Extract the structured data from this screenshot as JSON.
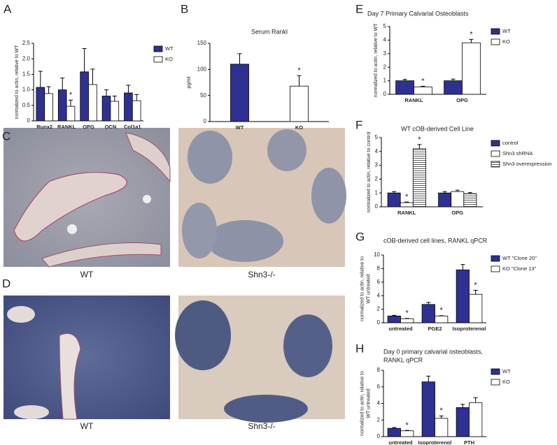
{
  "panels": {
    "letters": [
      "A",
      "B",
      "C",
      "D",
      "E",
      "F",
      "G",
      "H"
    ],
    "captions": [
      "WT",
      "Shn3-/-",
      "WT",
      "Shn3-/-"
    ]
  },
  "chart_data": [
    {
      "type": "bar",
      "ylabel": "normalized to actin, relative to WT",
      "categories": [
        "Runx2",
        "RANKL",
        "OPG",
        "OCN",
        "Col1a1"
      ],
      "series": [
        {
          "name": "WT",
          "color": "#2e3192",
          "values": [
            1.08,
            1.0,
            1.58,
            0.8,
            0.9
          ],
          "errors": [
            0.52,
            0.38,
            0.75,
            0.2,
            0.25
          ],
          "annotations": [
            null,
            null,
            null,
            null,
            null
          ]
        },
        {
          "name": "KO",
          "color": "#ffffff",
          "values": [
            0.88,
            0.47,
            1.17,
            0.63,
            0.65
          ],
          "errors": [
            0.22,
            0.2,
            0.5,
            0.17,
            0.2
          ],
          "annotations": [
            null,
            "*",
            null,
            null,
            null
          ]
        }
      ],
      "ylim": [
        0,
        2.5
      ],
      "yticks": [
        0,
        0.5,
        {
          "value": 1,
          "label": "1.0"
        },
        1.5,
        {
          "value": 2,
          "label": "2.0"
        },
        2.5
      ]
    },
    {
      "type": "bar",
      "title": "Serum Rankl",
      "ylabel": "pg/ml",
      "categories": [
        "WT",
        "KO"
      ],
      "series": [
        {
          "color": "#2e3192",
          "values": [
            110,
            null
          ],
          "errors": [
            20,
            null
          ],
          "annotations": [
            null,
            null
          ]
        },
        {
          "color": "#ffffff",
          "values": [
            null,
            68
          ],
          "errors": [
            null,
            20
          ],
          "annotations": [
            null,
            "*"
          ]
        }
      ],
      "ylim": [
        0,
        150
      ],
      "yticks": [
        0,
        50,
        100,
        150
      ]
    },
    {
      "type": "bar",
      "title": "Day 7 Primary Calvarial Osteoblasts",
      "ylabel": "normalized to actin, relative to WT",
      "categories": [
        "RANKL",
        "OPG"
      ],
      "series": [
        {
          "name": "WT",
          "color": "#2e3192",
          "values": [
            1.0,
            1.0
          ],
          "errors": [
            0.1,
            0.12
          ],
          "annotations": [
            null,
            null
          ]
        },
        {
          "name": "KO",
          "color": "#ffffff",
          "values": [
            0.55,
            3.8
          ],
          "errors": [
            0.05,
            0.25
          ],
          "annotations": [
            "*",
            "*"
          ]
        }
      ],
      "ylim": [
        0,
        5
      ],
      "yticks": [
        0,
        1,
        2,
        3,
        4,
        5
      ]
    },
    {
      "type": "bar",
      "title": "WT cOB-derived Cell Line",
      "ylabel": "normalized to actin, relative to control",
      "categories": [
        "RANKL",
        "OPG"
      ],
      "series": [
        {
          "name": "control",
          "color": "#2e3192",
          "values": [
            1.0,
            1.0
          ],
          "errors": [
            0.1,
            0.1
          ],
          "annotations": [
            null,
            null
          ]
        },
        {
          "name": "Shn3 shRNA",
          "color": "#ffffff",
          "values": [
            0.3,
            1.1
          ],
          "errors": [
            0.05,
            0.1
          ],
          "annotations": [
            "*",
            null
          ]
        },
        {
          "name": "Shn3 overexpression",
          "color": "#ffffff",
          "hatch": true,
          "values": [
            4.2,
            0.95
          ],
          "errors": [
            0.3,
            0.08
          ],
          "annotations": [
            "*",
            null
          ]
        }
      ],
      "ylim": [
        0,
        5
      ],
      "yticks": [
        0,
        1,
        2,
        3,
        4,
        5
      ]
    },
    {
      "type": "bar",
      "title": "cOB-derived cell lines, RANKL qPCR",
      "ylabel": [
        "normalized to actin, relative to",
        "WT untreated"
      ],
      "categories": [
        "untreated",
        "PGE2",
        "Isoproterenol"
      ],
      "series": [
        {
          "name": "WT \"Clone 20\"",
          "color": "#2e3192",
          "values": [
            1.0,
            2.7,
            7.8
          ],
          "errors": [
            0.1,
            0.3,
            0.8
          ],
          "annotations": [
            null,
            null,
            null
          ]
        },
        {
          "name": "KO \"Clone 13\"",
          "color": "#ffffff",
          "values": [
            0.6,
            1.0,
            4.2
          ],
          "errors": [
            0.05,
            0.05,
            0.6
          ],
          "annotations": [
            "*",
            "*",
            "*"
          ]
        }
      ],
      "ylim": [
        0,
        10
      ],
      "yticks": [
        0,
        2,
        4,
        6,
        8,
        10
      ]
    },
    {
      "type": "bar",
      "title": [
        "Day 0 primary calvarial osteoblasts,",
        "RANKL qPCR"
      ],
      "ylabel": [
        "normalized to actin, relative to",
        "WT untreated"
      ],
      "categories": [
        "untreated",
        "Isoproterenol",
        "PTH"
      ],
      "series": [
        {
          "name": "WT",
          "color": "#2e3192",
          "values": [
            1.0,
            6.6,
            3.5
          ],
          "errors": [
            0.1,
            0.7,
            0.4
          ],
          "annotations": [
            null,
            null,
            null
          ]
        },
        {
          "name": "KO",
          "color": "#ffffff",
          "values": [
            0.7,
            2.2,
            4.1
          ],
          "errors": [
            0.05,
            0.3,
            0.6
          ],
          "annotations": [
            "*",
            "*",
            null
          ]
        }
      ],
      "ylim": [
        0,
        8
      ],
      "yticks": [
        0,
        2,
        4,
        6,
        8
      ]
    }
  ]
}
